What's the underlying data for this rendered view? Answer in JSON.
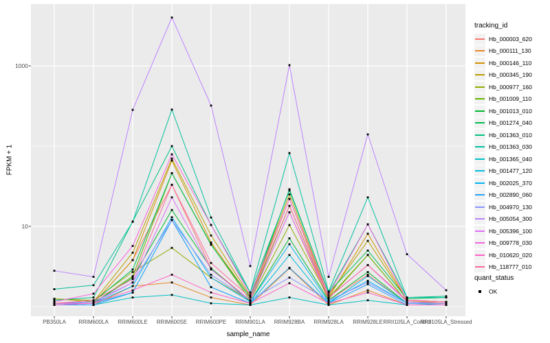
{
  "axes": {
    "x_title": "sample_name",
    "y_title": "FPKM + 1"
  },
  "legend": {
    "tracking_title": "tracking_id",
    "quant_title": "quant_status",
    "quant_items": [
      {
        "label": "OK",
        "icon": "black-square-point"
      }
    ]
  },
  "chart_data": {
    "type": "line",
    "title": "",
    "xlabel": "sample_name",
    "ylabel": "FPKM + 1",
    "y_scale": "log10",
    "grid": true,
    "legend_position": "right",
    "panel_bg": "#EBEBEB",
    "grid_color": "#FFFFFF",
    "point_color": "#000000",
    "axis_text_color": "#4D4D4D",
    "y_ticks": [
      10,
      1000
    ],
    "y_minor": [
      1,
      100
    ],
    "ylim": [
      0.76,
      5750
    ],
    "categories": [
      "PB350LA",
      "RRIM600LA",
      "RRIM600LE",
      "RRIM600SE",
      "RRIM600PE",
      "RRIM901LA",
      "RRIM928BA",
      "RRIM928LA",
      "RRIM928LE",
      "RRII105LA_Control",
      "RRII105LA_Stressed"
    ],
    "series": [
      {
        "name": "Hb_000003_620",
        "color": "#F8766D",
        "values": [
          1.1,
          1.1,
          3.8,
          33,
          3.0,
          1.2,
          15,
          1.2,
          2.5,
          1.1,
          1.1
        ]
      },
      {
        "name": "Hb_000111_130",
        "color": "#E88526",
        "values": [
          1.05,
          1.05,
          1.8,
          2.0,
          1.3,
          1.05,
          3.0,
          1.05,
          1.6,
          1.05,
          1.05
        ]
      },
      {
        "name": "Hb_000146_110",
        "color": "#D39200",
        "values": [
          1.1,
          1.1,
          3.8,
          66,
          6.3,
          1.3,
          22,
          1.3,
          8.1,
          1.2,
          1.1
        ]
      },
      {
        "name": "Hb_000345_190",
        "color": "#B79F00",
        "values": [
          1.25,
          1.15,
          4.7,
          70,
          7.7,
          1.35,
          25,
          1.4,
          6.6,
          1.2,
          1.15
        ]
      },
      {
        "name": "Hb_000977_160",
        "color": "#93AA00",
        "values": [
          1.25,
          1.2,
          2.7,
          5.4,
          2.3,
          1.2,
          10.4,
          1.3,
          4.4,
          1.15,
          1.1
        ]
      },
      {
        "name": "Hb_001009_110",
        "color": "#64B200",
        "values": [
          1.1,
          1.1,
          2.4,
          46,
          6.0,
          1.2,
          18,
          1.25,
          4.4,
          1.15,
          1.1
        ]
      },
      {
        "name": "Hb_001013_010",
        "color": "#00B92F",
        "values": [
          1.05,
          1.1,
          2.3,
          16,
          3.0,
          1.15,
          7.1,
          1.2,
          2.7,
          1.1,
          1.1
        ]
      },
      {
        "name": "Hb_001274_040",
        "color": "#00BC51",
        "values": [
          1.1,
          1.15,
          2.9,
          46,
          5.9,
          1.3,
          29,
          1.5,
          5.0,
          1.25,
          1.3
        ]
      },
      {
        "name": "Hb_001363_010",
        "color": "#00C087",
        "values": [
          1.2,
          1.3,
          11.5,
          100,
          10.4,
          1.5,
          28,
          1.5,
          10.6,
          1.3,
          1.35
        ]
      },
      {
        "name": "Hb_001363_030",
        "color": "#00C19F",
        "values": [
          1.65,
          1.85,
          11.4,
          285,
          12.9,
          1.5,
          82,
          1.55,
          23,
          1.3,
          1.3
        ]
      },
      {
        "name": "Hb_001365_040",
        "color": "#00BFC4",
        "values": [
          1.05,
          1.05,
          1.3,
          1.4,
          1.1,
          1.05,
          1.3,
          1.05,
          1.2,
          1.05,
          1.05
        ]
      },
      {
        "name": "Hb_001477_120",
        "color": "#00BADE",
        "values": [
          1.05,
          1.1,
          1.5,
          12,
          1.75,
          1.1,
          4.4,
          1.1,
          2.4,
          1.1,
          1.05
        ]
      },
      {
        "name": "Hb_002025_370",
        "color": "#00B2F3",
        "values": [
          1.1,
          1.1,
          1.8,
          13,
          2.3,
          1.15,
          6.0,
          1.15,
          2.1,
          1.1,
          1.1
        ]
      },
      {
        "name": "Hb_002890_060",
        "color": "#29A3FF",
        "values": [
          1.05,
          1.05,
          1.5,
          12,
          1.75,
          1.1,
          3.05,
          1.1,
          1.9,
          1.05,
          1.05
        ]
      },
      {
        "name": "Hb_004970_130",
        "color": "#8B93FF",
        "values": [
          1.1,
          1.15,
          2.0,
          12,
          2.5,
          1.2,
          2.3,
          1.2,
          2.0,
          1.1,
          1.1
        ]
      },
      {
        "name": "Hb_005054_300",
        "color": "#BC81FF",
        "values": [
          2.8,
          2.35,
          283,
          4000,
          320,
          3.2,
          1020,
          2.35,
          140,
          4.5,
          1.6
        ]
      },
      {
        "name": "Hb_005396_100",
        "color": "#DD6FF7",
        "values": [
          1.1,
          1.1,
          2.0,
          23,
          2.9,
          1.2,
          15,
          1.3,
          3.3,
          1.15,
          1.1
        ]
      },
      {
        "name": "Hb_009778_030",
        "color": "#F763E0",
        "values": [
          1.15,
          1.45,
          5.7,
          79,
          10.4,
          1.4,
          22,
          1.4,
          10.6,
          1.2,
          1.15
        ]
      },
      {
        "name": "Hb_010620_020",
        "color": "#FF61C7",
        "values": [
          1.05,
          1.1,
          1.6,
          2.5,
          1.5,
          1.1,
          1.96,
          1.1,
          1.5,
          1.05,
          1.05
        ]
      },
      {
        "name": "Hb_118777_010",
        "color": "#FF689E",
        "values": [
          1.1,
          1.2,
          2.2,
          33,
          3.5,
          1.3,
          18,
          1.3,
          3.3,
          1.2,
          1.15
        ]
      }
    ]
  }
}
